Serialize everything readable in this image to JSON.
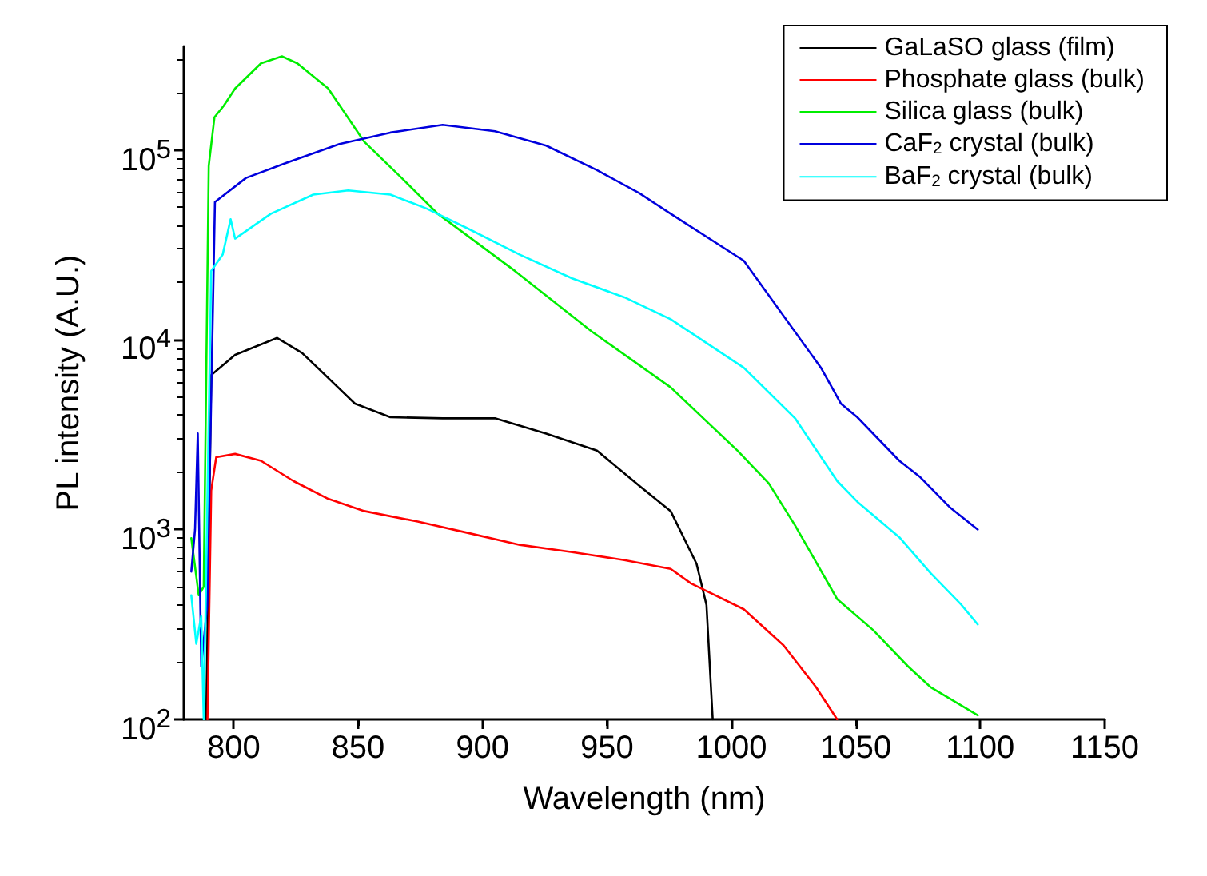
{
  "chart_data": {
    "type": "line",
    "xlabel": "Wavelength (nm)",
    "ylabel": "PL intensity (A.U.)",
    "log": "y",
    "xlim": [
      780,
      1150
    ],
    "ylim": [
      100,
      350000
    ],
    "xticks": [
      800,
      850,
      900,
      950,
      1000,
      1050,
      1100,
      1150
    ],
    "yticks": [
      {
        "value": 100,
        "label": "10$^{2}$"
      },
      {
        "value": 1000,
        "label": "10$^{3}$"
      },
      {
        "value": 10000,
        "label": "10$^{4}$"
      },
      {
        "value": 100000,
        "label": "10$^{5}$"
      }
    ],
    "grid": false,
    "legend": "top right",
    "marker": "none",
    "line_style": "solid",
    "series": [
      {
        "name": "GaLaSO glass (film)",
        "color": "#000000",
        "x": [
          789,
          791,
          800.6,
          817.5,
          827.5,
          833.75,
          848.75,
          863,
          884,
          905,
          925.6,
          946,
          963,
          975.6,
          986,
          990,
          992.5
        ],
        "values": [
          100,
          6500,
          8300,
          10200,
          8500,
          7100,
          4600,
          3900,
          3850,
          3850,
          3200,
          2600,
          1700,
          1250,
          660,
          400,
          100
        ]
      },
      {
        "name": "Phosphate glass (bulk)",
        "color": "#ff0000",
        "x": [
          789.5,
          791,
          793,
          800.6,
          811,
          824,
          838,
          852.5,
          874,
          894,
          915,
          936,
          957,
          975.6,
          983.75,
          1005,
          1021,
          1034,
          1042.5
        ],
        "values": [
          100,
          1600,
          2400,
          2500,
          2300,
          1800,
          1450,
          1250,
          1100,
          960,
          830,
          760,
          690,
          620,
          520,
          380,
          245,
          148,
          100
        ]
      },
      {
        "name": "Silica glass (bulk)",
        "color": "#00ee00",
        "x": [
          783,
          786,
          788,
          790,
          792.3,
          796,
          800.6,
          811,
          819.4,
          825.6,
          838,
          852.5,
          867.5,
          882,
          913,
          944,
          975.6,
          1002.5,
          1015,
          1025.6,
          1042.5,
          1057,
          1071,
          1080,
          1099
        ],
        "values": [
          900,
          450,
          500,
          82000,
          148000,
          170000,
          210000,
          285000,
          310000,
          285000,
          210000,
          110000,
          71000,
          46000,
          23000,
          11000,
          5600,
          2600,
          1750,
          1050,
          430,
          295,
          190,
          148,
          105
        ]
      },
      {
        "name": "CaF$_{2}$ crystal (bulk)",
        "color": "#0000dd",
        "x": [
          783,
          784.5,
          785.6,
          787,
          789.4,
          792.5,
          805,
          821,
          842.5,
          863,
          884,
          905,
          925.6,
          946,
          963,
          975.6,
          1005,
          1036,
          1044,
          1050.6,
          1067.5,
          1075.6,
          1088,
          1099
        ],
        "values": [
          600,
          1000,
          3200,
          190,
          400,
          53000,
          71000,
          85000,
          107000,
          123000,
          135000,
          125000,
          105000,
          78000,
          59000,
          46000,
          26000,
          7100,
          4600,
          3900,
          2300,
          1900,
          1300,
          1000
        ]
      },
      {
        "name": "BaF$_{2}$ crystal (bulk)",
        "color": "#00ffff",
        "x": [
          783,
          785,
          787,
          788,
          791,
          795.6,
          798.8,
          800.6,
          815,
          832,
          846,
          863,
          877.5,
          894,
          915,
          936,
          957,
          975.6,
          1005,
          1025.6,
          1042.5,
          1050.6,
          1067.5,
          1080,
          1092.5,
          1099
        ],
        "values": [
          450,
          250,
          350,
          100,
          23000,
          28000,
          43000,
          34000,
          46000,
          58000,
          61000,
          58000,
          49000,
          38500,
          28000,
          21000,
          16700,
          12800,
          7100,
          3850,
          1800,
          1400,
          910,
          590,
          400,
          316
        ]
      }
    ]
  }
}
